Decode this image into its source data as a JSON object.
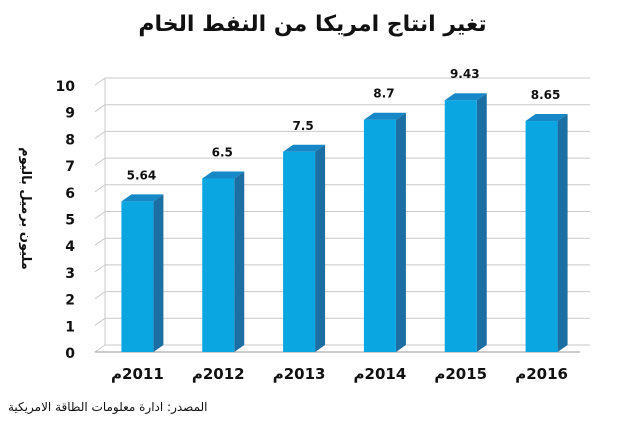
{
  "chart_data": {
    "type": "bar",
    "title": "تغير انتاج امريكا من النفط الخام",
    "ylabel": "مليون برميل باليوم",
    "xlabel": "",
    "categories": [
      "2011م",
      "2012م",
      "2013م",
      "2014م",
      "2015م",
      "2016م"
    ],
    "values": [
      5.64,
      6.5,
      7.5,
      8.7,
      9.43,
      8.65
    ],
    "value_labels": [
      "5.64",
      "6.5",
      "7.5",
      "8.7",
      "9.43",
      "8.65"
    ],
    "ylim": [
      0,
      10
    ],
    "yticks": [
      "0",
      "1",
      "2",
      "3",
      "4",
      "5",
      "6",
      "7",
      "8",
      "9",
      "10"
    ],
    "grid": true,
    "legend": "none",
    "bar_color": "#0aa6e2",
    "bar_side_color": "#1b6fa3",
    "bar_top_color": "#1688c7"
  },
  "source": "المصدر: ادارة معلومات الطاقة الامريكية"
}
